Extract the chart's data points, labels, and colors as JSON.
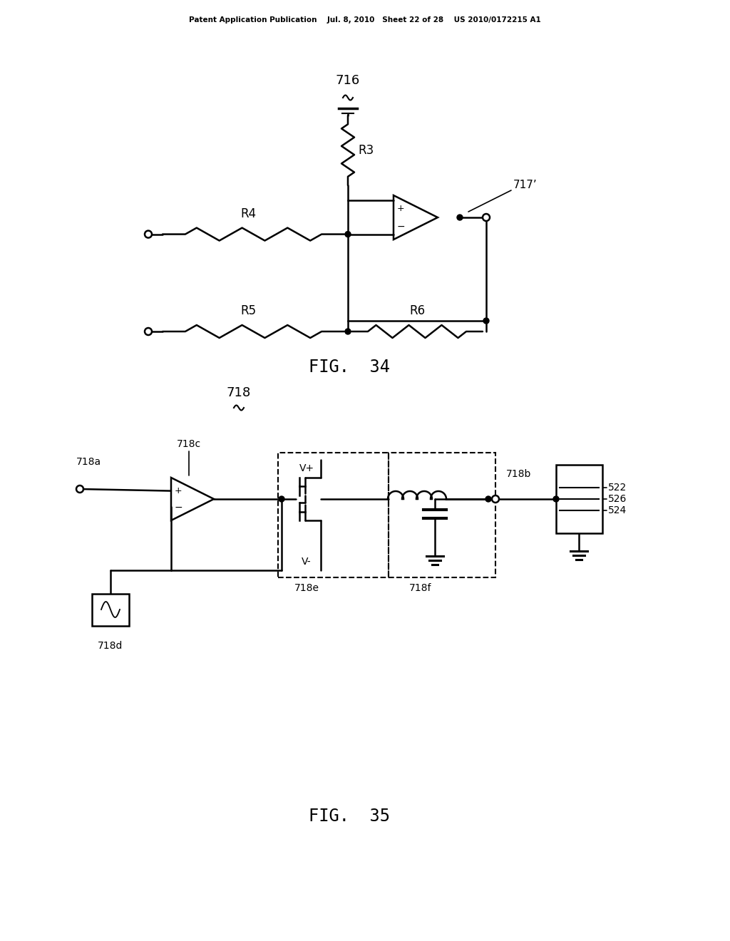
{
  "header": "Patent Application Publication    Jul. 8, 2010   Sheet 22 of 28    US 2010/0172215 A1",
  "fig34_label": "FIG.  34",
  "fig35_label": "FIG.  35",
  "label_716": "716",
  "label_717": "717’",
  "label_R3": "R3",
  "label_R4": "R4",
  "label_R5": "R5",
  "label_R6": "R6",
  "label_718": "718",
  "label_718a": "718a",
  "label_718b": "718b",
  "label_718c": "718c",
  "label_718d": "718d",
  "label_718e": "718e",
  "label_718f": "718f",
  "label_Vplus": "V+",
  "label_Vminus": "V-",
  "label_522": "522",
  "label_526": "526",
  "label_524": "524",
  "bg_color": "#ffffff",
  "lc": "#000000",
  "lw": 1.8
}
